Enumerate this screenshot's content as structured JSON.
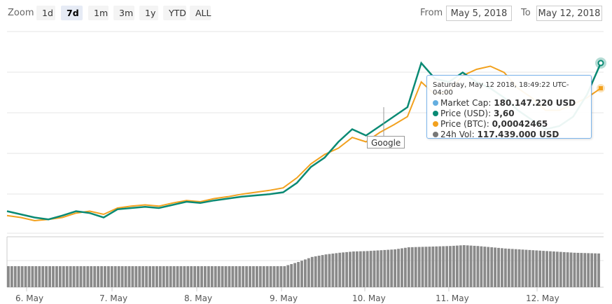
{
  "toolbar": {
    "zoom_label": "Zoom",
    "zoom_buttons": [
      "1d",
      "7d",
      "1m",
      "3m",
      "1y",
      "YTD",
      "ALL"
    ],
    "active_zoom": "7d",
    "from_label": "From",
    "from_value": "May 5, 2018",
    "to_label": "To",
    "to_value": "May 12, 2018"
  },
  "tooltip": {
    "date": "Saturday, May 12 2018, 18:49:22 UTC-04:00",
    "rows": [
      {
        "label": "Market Cap:",
        "value": "180.147.220 USD",
        "color": "#64aee0"
      },
      {
        "label": "Price (USD):",
        "value": "3,60",
        "color": "#0a8a74"
      },
      {
        "label": "Price (BTC):",
        "value": "0,00042465",
        "color": "#f2a11e"
      },
      {
        "label": "24h Vol:",
        "value": "117.439.000 USD",
        "color": "#777777"
      }
    ]
  },
  "flag": {
    "label": "Google"
  },
  "colors": {
    "price_usd": "#0a8a74",
    "price_btc": "#f2a11e",
    "volume": "#8a8a8a",
    "grid": "#e6e6e6"
  },
  "chart_data": {
    "type": "line",
    "x_labels": [
      "6. May",
      "7. May",
      "8. May",
      "9. May",
      "10. May",
      "11. May",
      "12. May"
    ],
    "series": [
      {
        "name": "Price (USD)",
        "values": [
          1.25,
          1.2,
          1.15,
          1.12,
          1.18,
          1.25,
          1.22,
          1.15,
          1.28,
          1.3,
          1.32,
          1.3,
          1.35,
          1.4,
          1.38,
          1.42,
          1.45,
          1.48,
          1.5,
          1.52,
          1.55,
          1.7,
          1.95,
          2.1,
          2.35,
          2.55,
          2.45,
          2.6,
          2.75,
          2.9,
          3.6,
          3.35,
          3.3,
          3.45,
          3.3,
          3.2,
          3.05,
          2.85,
          2.7,
          2.55,
          2.6,
          2.75,
          3.1,
          3.6
        ]
      },
      {
        "name": "Price (BTC)",
        "values": [
          1.18,
          1.15,
          1.1,
          1.12,
          1.15,
          1.22,
          1.25,
          1.2,
          1.3,
          1.33,
          1.35,
          1.33,
          1.38,
          1.42,
          1.4,
          1.45,
          1.48,
          1.52,
          1.55,
          1.58,
          1.62,
          1.78,
          2.0,
          2.15,
          2.25,
          2.42,
          2.35,
          2.5,
          2.62,
          2.75,
          3.3,
          3.1,
          3.15,
          3.4,
          3.5,
          3.55,
          3.45,
          3.2,
          3.05,
          2.85,
          2.85,
          2.95,
          3.05,
          3.2
        ]
      },
      {
        "name": "24h Vol",
        "values": [
          0.5,
          0.5,
          0.5,
          0.5,
          0.5,
          0.5,
          0.5,
          0.5,
          0.5,
          0.5,
          0.5,
          0.5,
          0.5,
          0.5,
          0.5,
          0.5,
          0.5,
          0.5,
          0.5,
          0.5,
          0.5,
          0.6,
          0.72,
          0.78,
          0.82,
          0.85,
          0.86,
          0.88,
          0.9,
          0.95,
          0.96,
          0.97,
          0.98,
          1.0,
          0.98,
          0.95,
          0.92,
          0.9,
          0.88,
          0.86,
          0.84,
          0.82,
          0.81,
          0.8
        ]
      }
    ]
  }
}
